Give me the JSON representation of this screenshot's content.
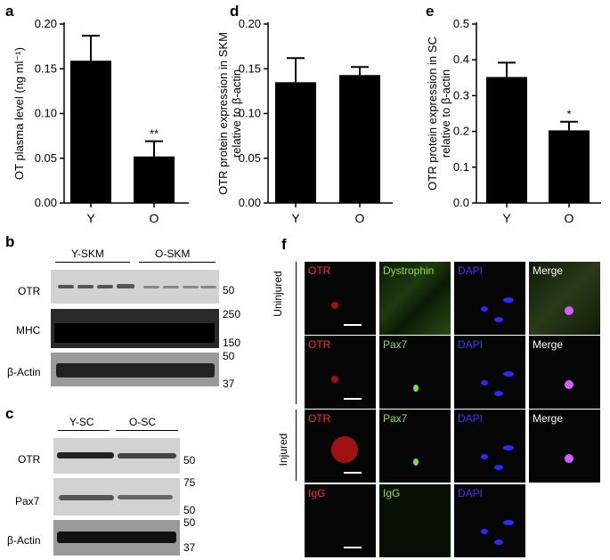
{
  "panels": {
    "a": "a",
    "b": "b",
    "c": "c",
    "d": "d",
    "e": "e",
    "f": "f"
  },
  "chart_data": [
    {
      "id": "a",
      "type": "bar",
      "categories": [
        "Y",
        "O"
      ],
      "values": [
        0.159,
        0.052
      ],
      "errors": [
        0.028,
        0.017
      ],
      "ylabel": "OT plasma level (ng ml⁻¹)",
      "ylim": [
        0,
        0.2
      ],
      "yticks": [
        "0.00",
        "0.05",
        "0.10",
        "0.15",
        "0.20"
      ],
      "significance": [
        "",
        "**"
      ]
    },
    {
      "id": "d",
      "type": "bar",
      "categories": [
        "Y",
        "O"
      ],
      "values": [
        0.135,
        0.143
      ],
      "errors": [
        0.027,
        0.009
      ],
      "ylabel": "OTR protein expression in SKM",
      "ylabel2": "relative to β-actin",
      "ylim": [
        0,
        0.2
      ],
      "yticks": [
        "0.00",
        "0.05",
        "0.10",
        "0.15",
        "0.20"
      ],
      "significance": [
        "",
        ""
      ]
    },
    {
      "id": "e",
      "type": "bar",
      "categories": [
        "Y",
        "O"
      ],
      "values": [
        0.352,
        0.203
      ],
      "errors": [
        0.04,
        0.024
      ],
      "ylabel": "OTR protein expression in SC",
      "ylabel2": "relative to β-actin",
      "ylim": [
        0,
        0.5
      ],
      "yticks": [
        "0.0",
        "0.1",
        "0.2",
        "0.3",
        "0.4",
        "0.5"
      ],
      "significance": [
        "",
        "*"
      ]
    }
  ],
  "blot_b": {
    "groups": [
      "Y-SKM",
      "O-SKM"
    ],
    "rows": [
      "OTR",
      "MHC",
      "β-Actin"
    ],
    "markers": [
      "50",
      "250",
      "150",
      "50",
      "37"
    ]
  },
  "blot_c": {
    "groups": [
      "Y-SC",
      "O-SC"
    ],
    "rows": [
      "OTR",
      "Pax7",
      "β-Actin"
    ],
    "markers": [
      "50",
      "75",
      "50",
      "50",
      "37"
    ]
  },
  "micrographs": {
    "row_labels": [
      "Uninjured",
      "Injured"
    ],
    "rows": [
      [
        "OTR",
        "Dystrophin",
        "DAPI",
        "Merge"
      ],
      [
        "OTR",
        "Pax7",
        "DAPI",
        "Merge"
      ],
      [
        "OTR",
        "Pax7",
        "DAPI",
        "Merge"
      ],
      [
        "IgG",
        "IgG",
        "DAPI"
      ]
    ],
    "colors": {
      "OTR": "#ff3030",
      "IgG": "#ff3030",
      "Dystrophin": "#8ae04a",
      "Pax7": "#8ae04a",
      "IgG2": "#8ae04a",
      "DAPI": "#3a3aff",
      "Merge": "#ffffff"
    }
  }
}
